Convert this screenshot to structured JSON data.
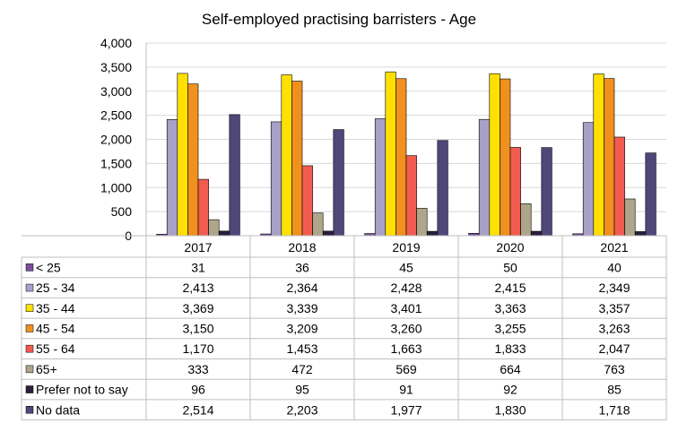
{
  "chart_data": {
    "type": "bar",
    "title": "Self-employed practising barristers - Age",
    "categories": [
      "2017",
      "2018",
      "2019",
      "2020",
      "2021"
    ],
    "ylim": [
      0,
      4000
    ],
    "yticks": [
      "0",
      "500",
      "1,000",
      "1,500",
      "2,000",
      "2,500",
      "3,000",
      "3,500",
      "4,000"
    ],
    "grid": true,
    "legend": "data-table-below",
    "series": [
      {
        "name": "< 25",
        "color": "#7a4f9a",
        "values": [
          31,
          36,
          45,
          50,
          40
        ],
        "labels": [
          "31",
          "36",
          "45",
          "50",
          "40"
        ]
      },
      {
        "name": "25 - 34",
        "color": "#a9a0c8",
        "values": [
          2413,
          2364,
          2428,
          2415,
          2349
        ],
        "labels": [
          "2,413",
          "2,364",
          "2,428",
          "2,415",
          "2,349"
        ]
      },
      {
        "name": "35 - 44",
        "color": "#ffe000",
        "values": [
          3369,
          3339,
          3401,
          3363,
          3357
        ],
        "labels": [
          "3,369",
          "3,339",
          "3,401",
          "3,363",
          "3,357"
        ]
      },
      {
        "name": "45 - 54",
        "color": "#f0901e",
        "values": [
          3150,
          3209,
          3260,
          3255,
          3263
        ],
        "labels": [
          "3,150",
          "3,209",
          "3,260",
          "3,255",
          "3,263"
        ]
      },
      {
        "name": "55 - 64",
        "color": "#f25c50",
        "values": [
          1170,
          1453,
          1663,
          1833,
          2047
        ],
        "labels": [
          "1,170",
          "1,453",
          "1,663",
          "1,833",
          "2,047"
        ]
      },
      {
        "name": "65+",
        "color": "#aea68a",
        "values": [
          333,
          472,
          569,
          664,
          763
        ],
        "labels": [
          "333",
          "472",
          "569",
          "664",
          "763"
        ]
      },
      {
        "name": "Prefer not to say",
        "color": "#2a1f3d",
        "values": [
          96,
          95,
          91,
          92,
          85
        ],
        "labels": [
          "96",
          "95",
          "91",
          "92",
          "85"
        ]
      },
      {
        "name": "No data",
        "color": "#4e4778",
        "values": [
          2514,
          2203,
          1977,
          1830,
          1718
        ],
        "labels": [
          "2,514",
          "2,203",
          "1,977",
          "1,830",
          "1,718"
        ]
      }
    ]
  }
}
